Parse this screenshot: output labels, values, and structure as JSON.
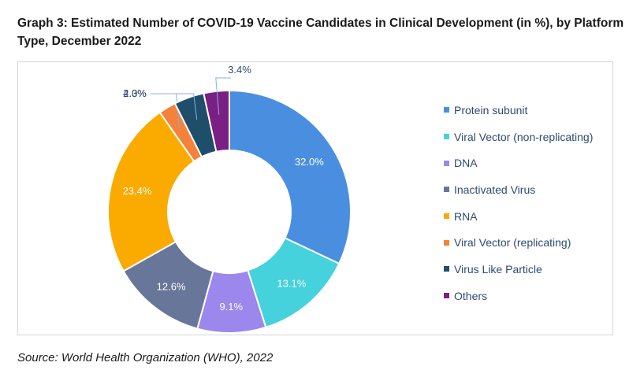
{
  "title": "Graph 3: Estimated Number of COVID-19 Vaccine Candidates in Clinical Development (in %), by Platform Type, December 2022",
  "source": "Source: World Health Organization (WHO), 2022",
  "chart_data": {
    "type": "pie",
    "variant": "donut",
    "title": "Graph 3: Estimated Number of COVID-19 Vaccine Candidates in Clinical Development (in %), by Platform Type, December 2022",
    "legend_position": "right",
    "categories": [
      "Protein subunit",
      "Viral Vector (non-replicating)",
      "DNA",
      "Inactivated Virus",
      "RNA",
      "Viral Vector (replicating)",
      "Virus Like Particle",
      "Others"
    ],
    "values": [
      32.0,
      13.1,
      9.1,
      12.6,
      23.4,
      2.3,
      4.0,
      3.4
    ],
    "labels": [
      "32.0%",
      "13.1%",
      "9.1%",
      "12.6%",
      "23.4%",
      "2.3%",
      "4.0%",
      "3.4%"
    ],
    "colors": [
      "#4a8fdf",
      "#45d2dc",
      "#9c87ec",
      "#687799",
      "#fbaa00",
      "#f5823a",
      "#1f4e6b",
      "#7a1f83"
    ]
  }
}
